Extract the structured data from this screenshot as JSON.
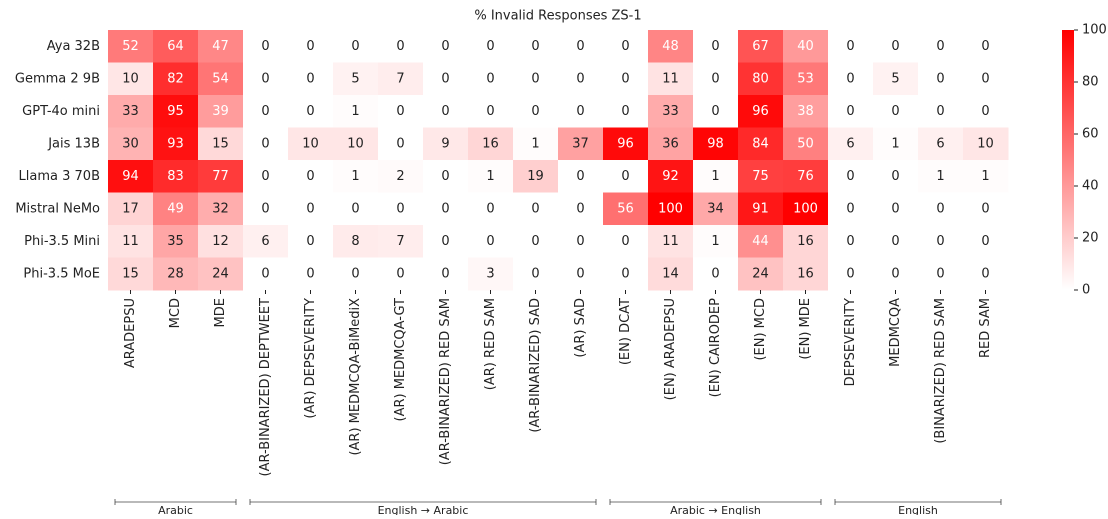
{
  "chart_data": {
    "type": "heatmap",
    "title": "% Invalid Responses ZS-1",
    "rows": [
      "Aya 32B",
      "Gemma 2 9B",
      "GPT-4o mini",
      "Jais 13B",
      "Llama 3 70B",
      "Mistral NeMo",
      "Phi-3.5 Mini",
      "Phi-3.5 MoE"
    ],
    "columns": [
      "ARADEPSU",
      "MCD",
      "MDE",
      "(AR-BINARIZED) DEPTWEET",
      "(AR) DEPSEVERITY",
      "(AR) MEDMCQA-BiMediX",
      "(AR) MEDMCQA-GT",
      "(AR-BINARIZED) RED SAM",
      "(AR) RED SAM",
      "(AR-BINARIZED) SAD",
      "(AR) SAD",
      "(EN) DCAT",
      "(EN) ARADEPSU",
      "(EN) CAIRODEP",
      "(EN) MCD",
      "(EN) MDE",
      "DEPSEVERITY",
      "MEDMCQA",
      "(BINARIZED) RED SAM",
      "RED SAM"
    ],
    "values": [
      [
        52,
        64,
        47,
        0,
        0,
        0,
        0,
        0,
        0,
        0,
        0,
        0,
        48,
        0,
        67,
        40,
        0,
        0,
        0,
        0
      ],
      [
        10,
        82,
        54,
        0,
        0,
        5,
        7,
        0,
        0,
        0,
        0,
        0,
        11,
        0,
        80,
        53,
        0,
        5,
        0,
        0
      ],
      [
        33,
        95,
        39,
        0,
        0,
        1,
        0,
        0,
        0,
        0,
        0,
        0,
        33,
        0,
        96,
        38,
        0,
        0,
        0,
        0
      ],
      [
        30,
        93,
        15,
        0,
        10,
        10,
        0,
        9,
        16,
        1,
        37,
        96,
        36,
        98,
        84,
        50,
        6,
        1,
        6,
        10
      ],
      [
        94,
        83,
        77,
        0,
        0,
        1,
        2,
        0,
        1,
        19,
        0,
        0,
        92,
        1,
        75,
        76,
        0,
        0,
        1,
        1
      ],
      [
        17,
        49,
        32,
        0,
        0,
        0,
        0,
        0,
        0,
        0,
        0,
        56,
        100,
        34,
        91,
        100,
        0,
        0,
        0,
        0
      ],
      [
        11,
        35,
        12,
        6,
        0,
        8,
        7,
        0,
        0,
        0,
        0,
        0,
        11,
        1,
        44,
        16,
        0,
        0,
        0,
        0
      ],
      [
        15,
        28,
        24,
        0,
        0,
        0,
        0,
        0,
        3,
        0,
        0,
        0,
        14,
        0,
        24,
        16,
        0,
        0,
        0,
        0
      ]
    ],
    "zlim": [
      0,
      100
    ],
    "zticks": [
      0,
      20,
      40,
      60,
      80,
      100
    ],
    "low_color": "#ffffff",
    "high_color": "#ff0000",
    "groups": [
      {
        "label": "Arabic",
        "start": 0,
        "end": 2
      },
      {
        "label": "English → Arabic",
        "start": 3,
        "end": 10
      },
      {
        "label": "Arabic → English",
        "start": 11,
        "end": 15
      },
      {
        "label": "English",
        "start": 16,
        "end": 19
      }
    ]
  }
}
